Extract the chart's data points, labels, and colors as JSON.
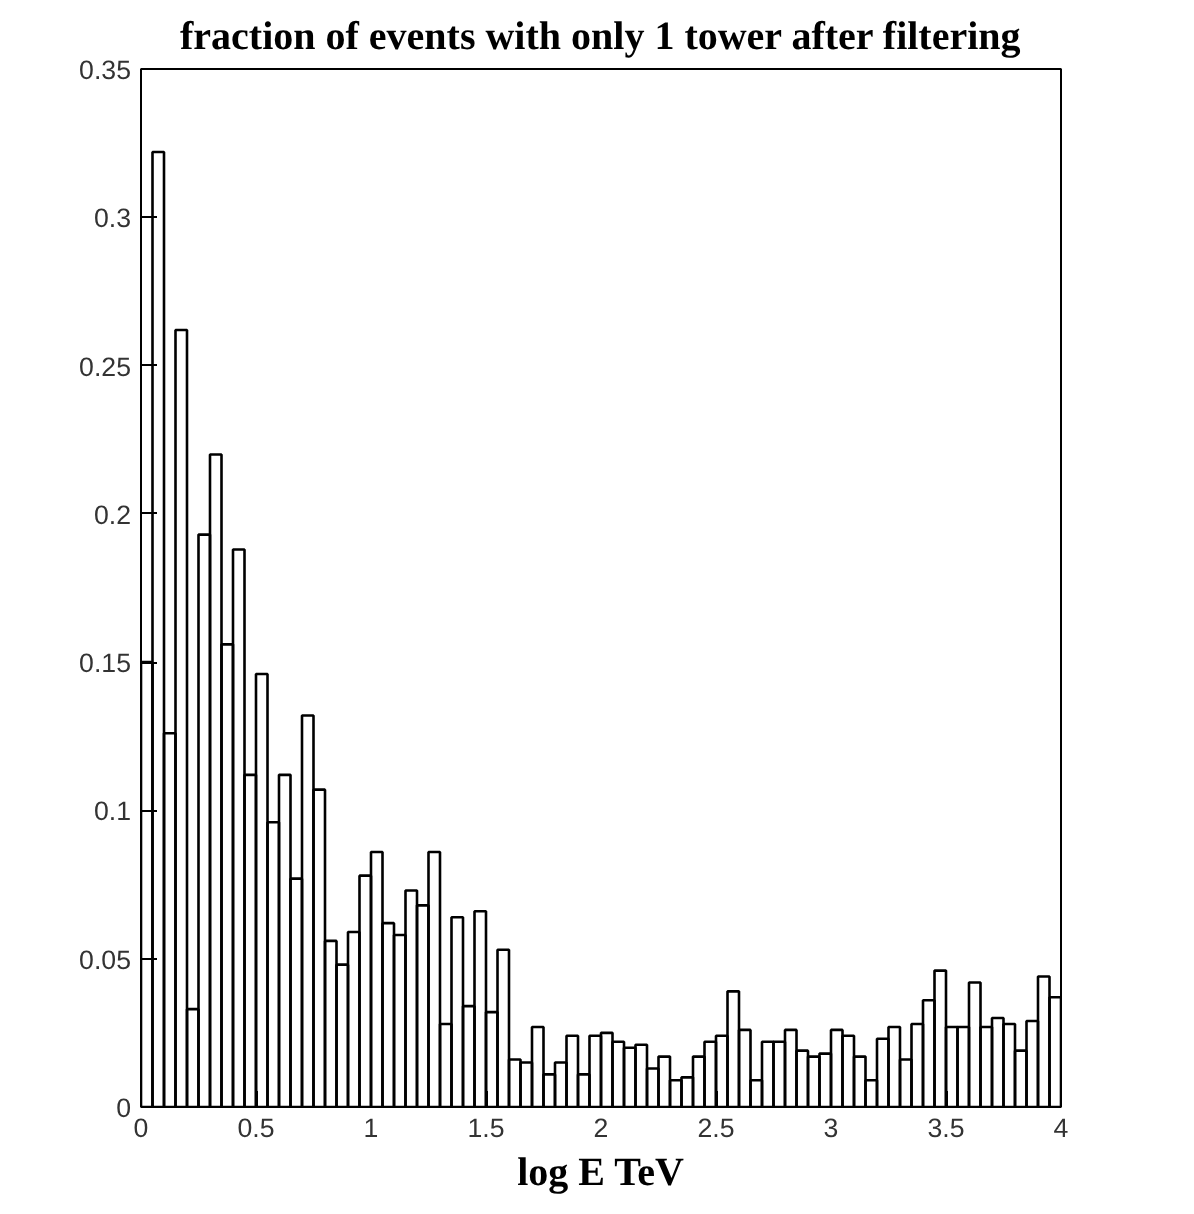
{
  "chart_data": {
    "type": "histogram",
    "title": "fraction of events with only 1 tower after filtering",
    "xlabel": "log E TeV",
    "bins": [
      0,
      0.05,
      0.1,
      0.15,
      0.2,
      0.25,
      0.3,
      0.35,
      0.4,
      0.45,
      0.5,
      0.55,
      0.6,
      0.65,
      0.7,
      0.75,
      0.8,
      0.85,
      0.9,
      0.95,
      1,
      1.05,
      1.1,
      1.15,
      1.2,
      1.25,
      1.3,
      1.35,
      1.4,
      1.45,
      1.5,
      1.55,
      1.6,
      1.65,
      1.7,
      1.75,
      1.8,
      1.85,
      1.9,
      1.95,
      2,
      2.05,
      2.1,
      2.15,
      2.2,
      2.25,
      2.3,
      2.35,
      2.4,
      2.45,
      2.5,
      2.55,
      2.6,
      2.65,
      2.7,
      2.75,
      2.8,
      2.85,
      2.9,
      2.95,
      3,
      3.05,
      3.1,
      3.15,
      3.2,
      3.25,
      3.3,
      3.35,
      3.4,
      3.45,
      3.5,
      3.55,
      3.6,
      3.65,
      3.7,
      3.75,
      3.8,
      3.85,
      3.9,
      3.95,
      4
    ],
    "values": [
      0.15,
      0.322,
      0.126,
      0.262,
      0.033,
      0.193,
      0.22,
      0.156,
      0.188,
      0.112,
      0.146,
      0.096,
      0.112,
      0.077,
      0.132,
      0.107,
      0.056,
      0.048,
      0.059,
      0.078,
      0.086,
      0.062,
      0.058,
      0.073,
      0.068,
      0.086,
      0.028,
      0.064,
      0.034,
      0.066,
      0.032,
      0.053,
      0.016,
      0.015,
      0.027,
      0.011,
      0.015,
      0.024,
      0.011,
      0.024,
      0.025,
      0.022,
      0.02,
      0.021,
      0.013,
      0.017,
      0.009,
      0.01,
      0.017,
      0.022,
      0.024,
      0.039,
      0.026,
      0.009,
      0.022,
      0.022,
      0.026,
      0.019,
      0.017,
      0.018,
      0.026,
      0.024,
      0.017,
      0.009,
      0.023,
      0.027,
      0.016,
      0.028,
      0.036,
      0.046,
      0.027,
      0.027,
      0.042,
      0.027,
      0.03,
      0.028,
      0.019,
      0.029,
      0.044,
      0.037
    ],
    "color": "#000000",
    "xlim": [
      0,
      4
    ],
    "xticks": [
      0,
      0.5,
      1,
      1.5,
      2,
      2.5,
      3,
      3.5,
      4
    ],
    "ylim": [
      0,
      0.35
    ],
    "yticks": [
      0,
      0.05,
      0.1,
      0.15,
      0.2,
      0.25,
      0.3,
      0.35
    ],
    "grid": false
  }
}
